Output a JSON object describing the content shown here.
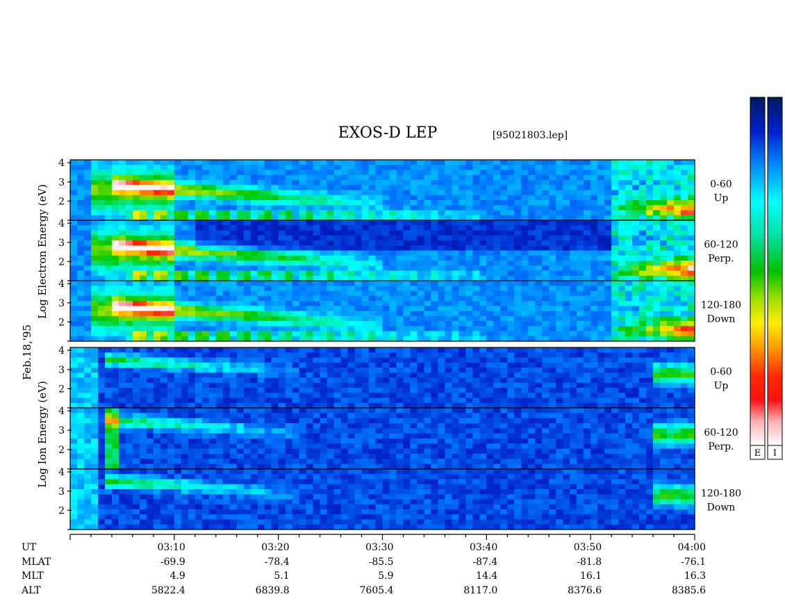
{
  "chart_data": {
    "type": "heatmap",
    "title": "EXOS-D LEP",
    "file_label": "[95021803.lep]",
    "date_label": "Feb.18,'95",
    "x_tick_labels": [
      "03:10",
      "03:20",
      "03:30",
      "03:40",
      "03:50",
      "04:00"
    ],
    "x_range_minutes": [
      "03:00",
      "04:00"
    ],
    "y_range": [
      1,
      4
    ],
    "y_tick_labels": [
      "2",
      "3",
      "4"
    ],
    "groups": [
      {
        "name": "electron",
        "ylabel": "Log Electron Energy (eV)",
        "panels": [
          {
            "angle": "0-60",
            "direction": "Up"
          },
          {
            "angle": "60-120",
            "direction": "Perp."
          },
          {
            "angle": "120-180",
            "direction": "Down"
          }
        ]
      },
      {
        "name": "ion",
        "ylabel": "Log Ion Energy (eV)",
        "panels": [
          {
            "angle": "0-60",
            "direction": "Up"
          },
          {
            "angle": "60-120",
            "direction": "Perp."
          },
          {
            "angle": "120-180",
            "direction": "Down"
          }
        ]
      }
    ],
    "colorbars": [
      {
        "label": "E"
      },
      {
        "label": "I"
      }
    ],
    "ephemeris": {
      "labels": [
        "UT",
        "MLAT",
        "MLT",
        "ALT"
      ],
      "MLAT": [
        "-69.9",
        "-78.4",
        "-85.5",
        "-87.4",
        "-81.8",
        "-76.1"
      ],
      "MLT": [
        "4.9",
        "5.1",
        "5.9",
        "14.4",
        "16.1",
        "16.3"
      ],
      "ALT": [
        "5822.4",
        "6839.8",
        "7605.4",
        "8117.0",
        "8376.6",
        "8385.6"
      ]
    },
    "colormap": [
      "#ffffff",
      "#ff9999",
      "#ff0000",
      "#ff8800",
      "#ffff00",
      "#00cc00",
      "#00ffff",
      "#0088ff",
      "#0022cc",
      "#001a66"
    ]
  }
}
